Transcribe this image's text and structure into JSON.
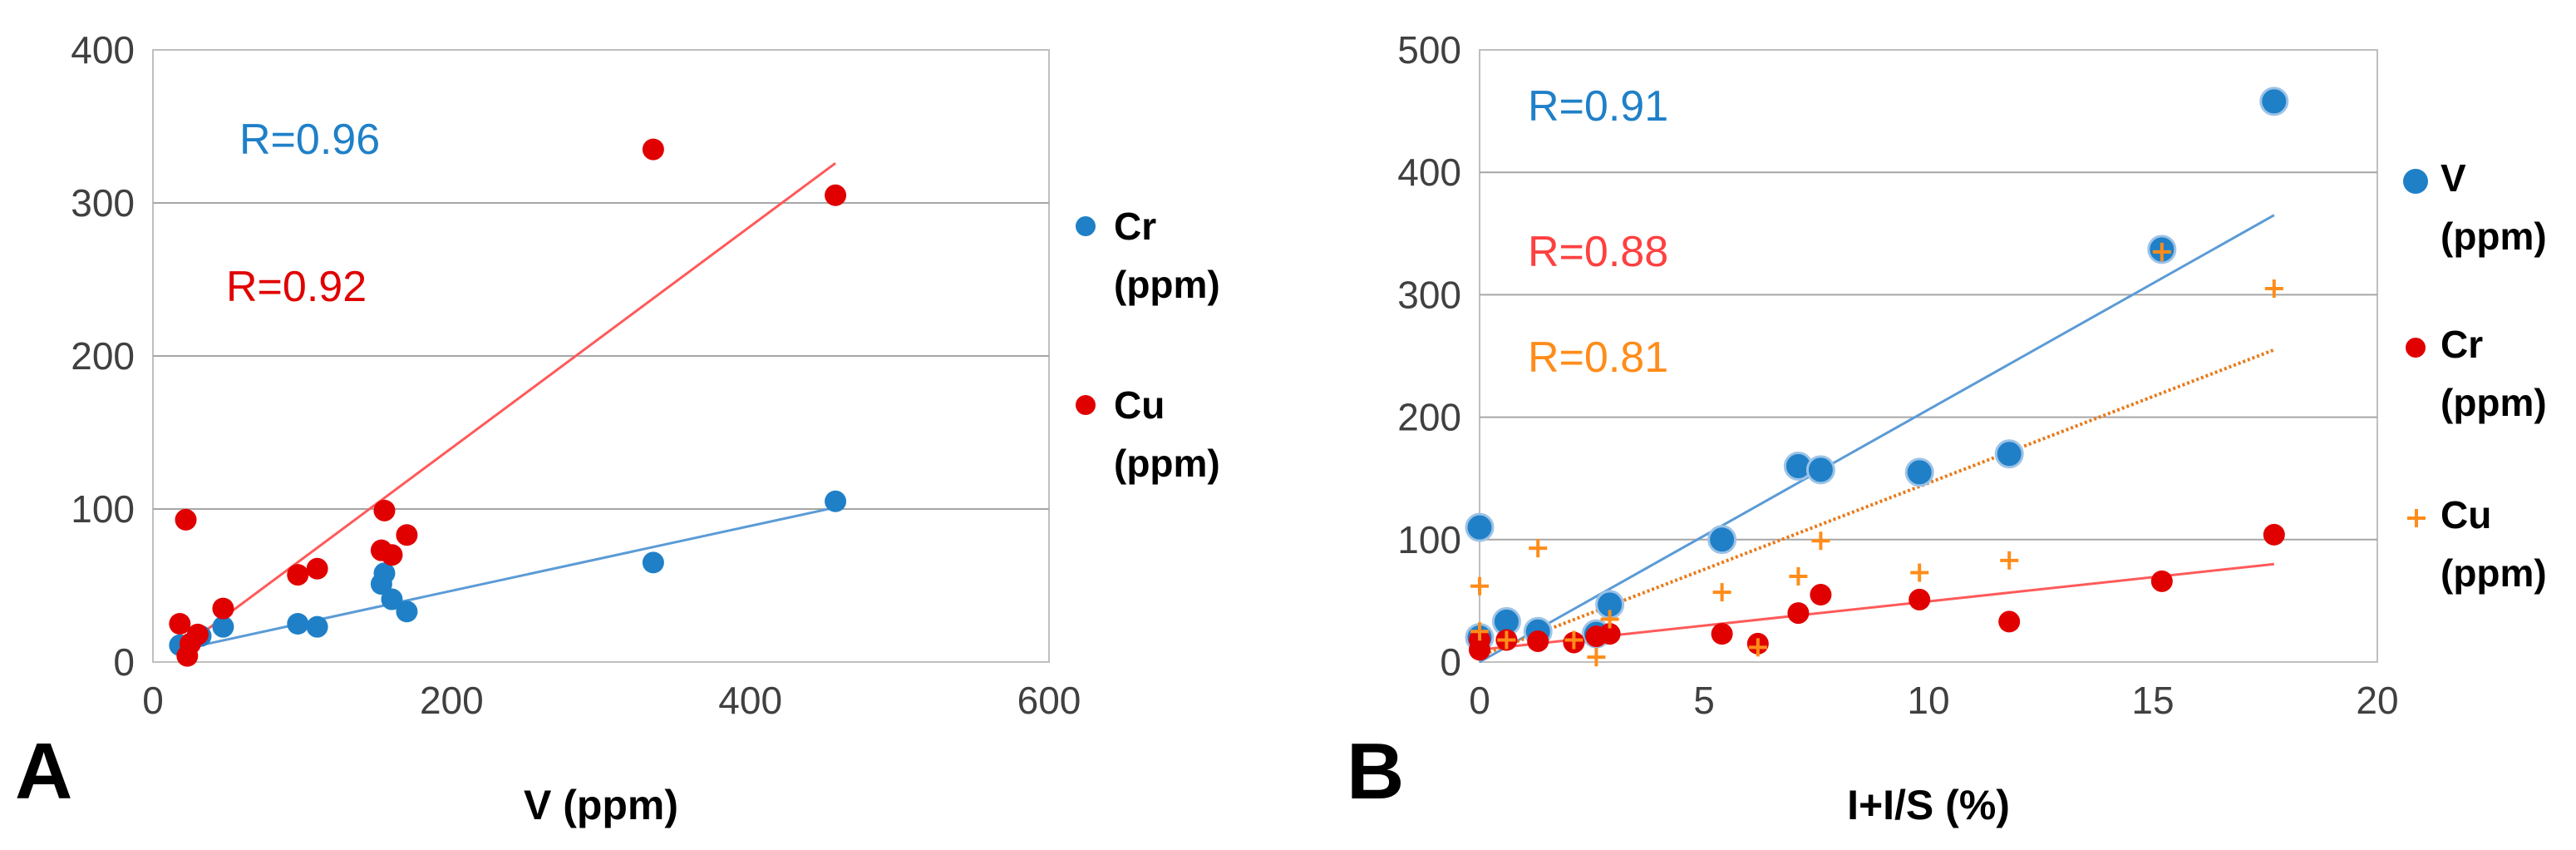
{
  "chart_data": [
    {
      "panel": "A",
      "type": "scatter",
      "xlabel": "V (ppm)",
      "ylabel": "",
      "xlim": [
        0,
        600
      ],
      "ylim": [
        0,
        400
      ],
      "xticks": [
        0,
        200,
        400,
        600
      ],
      "yticks": [
        0,
        100,
        200,
        300,
        400
      ],
      "xtick_labels": [
        "0",
        "200",
        "400",
        "600"
      ],
      "ytick_labels": [
        "0",
        "100",
        "200",
        "300",
        "400"
      ],
      "grid": true,
      "legend_position": "right",
      "series": [
        {
          "name": "Cr (ppm)",
          "legend_lines": [
            "Cr",
            "(ppm)"
          ],
          "color": "#1f80c8",
          "marker": "circle",
          "x": [
            18,
            32,
            47,
            97,
            110,
            153,
            155,
            160,
            170,
            335,
            457
          ],
          "y": [
            11,
            17,
            23,
            25,
            23,
            51,
            58,
            41,
            33,
            65,
            105
          ],
          "trendline": {
            "x": [
              18,
              457
            ],
            "y": [
              8,
              101
            ],
            "color": "#5b9bd5"
          },
          "annotation": "R=0.96"
        },
        {
          "name": "Cu (ppm)",
          "legend_lines": [
            "Cu",
            "(ppm)"
          ],
          "color": "#e00000",
          "marker": "circle",
          "x": [
            18,
            22,
            23,
            25,
            30,
            47,
            97,
            110,
            153,
            155,
            160,
            170,
            335,
            457
          ],
          "y": [
            25,
            93,
            4,
            12,
            18,
            35,
            57,
            61,
            73,
            99,
            70,
            83,
            335,
            305
          ],
          "trendline": {
            "x": [
              18,
              457
            ],
            "y": [
              8,
              326
            ],
            "color": "#ff5a5a"
          },
          "annotation": "R=0.92"
        }
      ]
    },
    {
      "panel": "B",
      "type": "scatter",
      "xlabel": "I+I/S (%)",
      "ylabel": "",
      "xlim": [
        0,
        20
      ],
      "ylim": [
        0,
        500
      ],
      "xticks": [
        0,
        5,
        10,
        15,
        20
      ],
      "yticks": [
        0,
        100,
        200,
        300,
        400,
        500
      ],
      "xtick_labels": [
        "0",
        "5",
        "10",
        "15",
        "20"
      ],
      "ytick_labels": [
        "0",
        "100",
        "200",
        "300",
        "400",
        "500"
      ],
      "grid": true,
      "legend_position": "right",
      "series": [
        {
          "name": "V (ppm)",
          "legend_lines": [
            "V",
            "(ppm)"
          ],
          "color": "#1f80c8",
          "marker": "circle-large",
          "x": [
            0,
            0,
            0.6,
            1.3,
            2.6,
            2.9,
            5.4,
            7.1,
            7.6,
            9.8,
            11.8,
            15.2,
            17.7
          ],
          "y": [
            110,
            20,
            33,
            25,
            23,
            47,
            100,
            160,
            157,
            155,
            170,
            337,
            458
          ],
          "trendline": {
            "x": [
              0,
              17.7
            ],
            "y": [
              0,
              365
            ],
            "color": "#5b9bd5"
          },
          "annotation": "R=0.91"
        },
        {
          "name": "Cr (ppm)",
          "legend_lines": [
            "Cr",
            "(ppm)"
          ],
          "color": "#e00000",
          "marker": "circle",
          "x": [
            0,
            0,
            0.6,
            1.3,
            2.1,
            2.6,
            2.9,
            5.4,
            6.2,
            7.1,
            7.6,
            9.8,
            11.8,
            15.2,
            17.7
          ],
          "y": [
            10,
            18,
            18,
            17,
            16,
            21,
            23,
            23,
            15,
            40,
            55,
            51,
            33,
            66,
            104
          ],
          "trendline": {
            "x": [
              0,
              17.7
            ],
            "y": [
              10,
              80
            ],
            "color": "#ff5a5a"
          },
          "annotation": "R=0.88"
        },
        {
          "name": "Cu (ppm)",
          "legend_lines": [
            "Cu",
            "(ppm)"
          ],
          "color": "#ff8c1a",
          "marker": "plus",
          "x": [
            0,
            0,
            0.6,
            1.3,
            2.1,
            2.6,
            2.9,
            5.4,
            6.2,
            7.1,
            7.6,
            9.8,
            11.8,
            15.2,
            17.7
          ],
          "y": [
            62,
            25,
            18,
            93,
            18,
            4,
            35,
            57,
            12,
            70,
            99,
            73,
            83,
            335,
            305
          ],
          "trendline": {
            "x": [
              0,
              17.7
            ],
            "y": [
              5,
              255
            ],
            "color": "#e87a1a",
            "dotted": true
          },
          "annotation": "R=0.81"
        }
      ]
    }
  ]
}
